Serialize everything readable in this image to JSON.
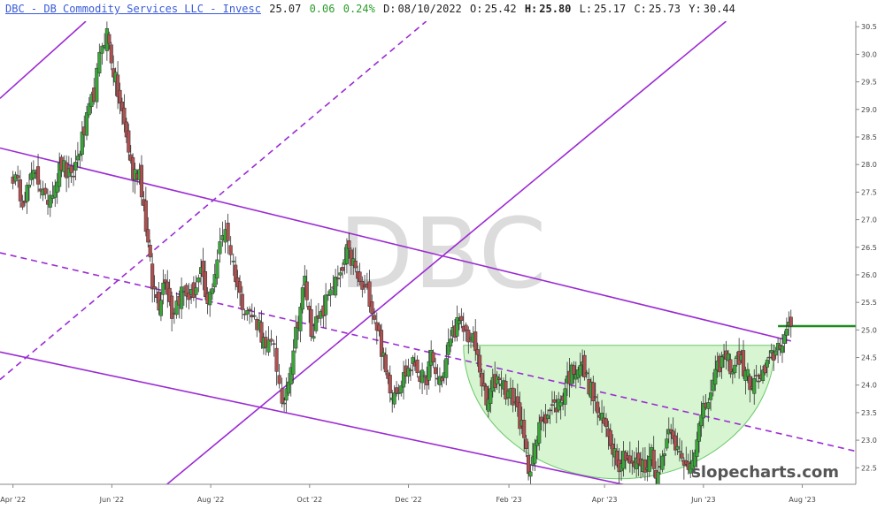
{
  "header": {
    "title": "DBC - DB Commodity Services LLC - Invesc",
    "last": "25.07",
    "change": "0.06",
    "change_pct": "0.24%",
    "date_label": "D:",
    "date": "08/10/2022",
    "open_label": "O:",
    "open": "25.42",
    "high_label": "H:",
    "high": "25.80",
    "low_label": "L:",
    "low": "25.17",
    "close_label": "C:",
    "close": "25.73",
    "year_label": "Y:",
    "year": "30.44"
  },
  "watermark": "DBC",
  "brand": "slopecharts.com",
  "colors": {
    "up": "#3aa63a",
    "down": "#b05050",
    "channel": "#9b2bd3",
    "last_price_line": "#1e8a1e",
    "cup_fill": "#d6f5d0",
    "cup_stroke": "#6cc96c",
    "watermark": "#dcdcdc"
  },
  "chart_data": {
    "type": "candlestick",
    "x_labels": [
      "Apr '22",
      "Jun '22",
      "Aug '22",
      "Oct '22",
      "Dec '22",
      "Feb '23",
      "Apr '23",
      "Jun '23",
      "Aug '23"
    ],
    "x_label_days": [
      0,
      61,
      122,
      183,
      244,
      306,
      365,
      426,
      487
    ],
    "y_ticks": [
      "22.5",
      "23.0",
      "23.5",
      "24.0",
      "24.5",
      "25.0",
      "25.5",
      "26.0",
      "26.5",
      "27.0",
      "27.5",
      "28.0",
      "28.5",
      "29.0",
      "29.5",
      "30.0",
      "30.5"
    ],
    "ylim": [
      22.2,
      30.6
    ],
    "xlim": [
      -8,
      520
    ],
    "price_anchors": [
      [
        0,
        27.8
      ],
      [
        6,
        27.4
      ],
      [
        10,
        27.6
      ],
      [
        14,
        27.9
      ],
      [
        20,
        27.3
      ],
      [
        26,
        27.7
      ],
      [
        30,
        28.0
      ],
      [
        36,
        27.7
      ],
      [
        44,
        28.6
      ],
      [
        50,
        29.3
      ],
      [
        55,
        30.2
      ],
      [
        58,
        30.4
      ],
      [
        62,
        29.7
      ],
      [
        66,
        29.1
      ],
      [
        70,
        28.5
      ],
      [
        74,
        27.8
      ],
      [
        78,
        27.9
      ],
      [
        82,
        26.9
      ],
      [
        86,
        25.8
      ],
      [
        90,
        25.5
      ],
      [
        94,
        26.0
      ],
      [
        98,
        25.3
      ],
      [
        104,
        25.7
      ],
      [
        110,
        25.6
      ],
      [
        116,
        26.0
      ],
      [
        120,
        25.4
      ],
      [
        126,
        26.3
      ],
      [
        131,
        26.9
      ],
      [
        136,
        26.2
      ],
      [
        140,
        25.6
      ],
      [
        146,
        25.3
      ],
      [
        152,
        25.1
      ],
      [
        156,
        24.6
      ],
      [
        161,
        24.8
      ],
      [
        166,
        23.5
      ],
      [
        170,
        24.2
      ],
      [
        176,
        25.2
      ],
      [
        180,
        25.9
      ],
      [
        184,
        25.0
      ],
      [
        190,
        25.2
      ],
      [
        196,
        25.8
      ],
      [
        202,
        25.9
      ],
      [
        206,
        26.4
      ],
      [
        210,
        26.2
      ],
      [
        214,
        25.8
      ],
      [
        220,
        25.6
      ],
      [
        226,
        24.9
      ],
      [
        230,
        24.2
      ],
      [
        234,
        23.9
      ],
      [
        238,
        24.0
      ],
      [
        244,
        24.3
      ],
      [
        248,
        24.4
      ],
      [
        254,
        24.0
      ],
      [
        258,
        24.5
      ],
      [
        262,
        24.1
      ],
      [
        266,
        24.2
      ],
      [
        270,
        24.9
      ],
      [
        274,
        25.1
      ],
      [
        278,
        25.0
      ],
      [
        284,
        24.8
      ],
      [
        288,
        24.3
      ],
      [
        292,
        23.6
      ],
      [
        296,
        24.0
      ],
      [
        300,
        24.2
      ],
      [
        304,
        23.9
      ],
      [
        310,
        23.7
      ],
      [
        314,
        23.2
      ],
      [
        318,
        22.5
      ],
      [
        322,
        22.8
      ],
      [
        326,
        23.4
      ],
      [
        330,
        23.5
      ],
      [
        334,
        23.6
      ],
      [
        338,
        23.7
      ],
      [
        342,
        24.1
      ],
      [
        346,
        24.3
      ],
      [
        350,
        24.4
      ],
      [
        354,
        24.1
      ],
      [
        358,
        23.8
      ],
      [
        362,
        23.4
      ],
      [
        366,
        23.2
      ],
      [
        370,
        22.9
      ],
      [
        374,
        22.6
      ],
      [
        378,
        22.8
      ],
      [
        382,
        22.5
      ],
      [
        386,
        22.6
      ],
      [
        390,
        22.5
      ],
      [
        394,
        22.8
      ],
      [
        398,
        22.3
      ],
      [
        402,
        22.9
      ],
      [
        406,
        23.3
      ],
      [
        410,
        22.8
      ],
      [
        414,
        22.5
      ],
      [
        418,
        22.6
      ],
      [
        422,
        23.1
      ],
      [
        426,
        23.5
      ],
      [
        432,
        24.0
      ],
      [
        436,
        24.4
      ],
      [
        440,
        24.5
      ],
      [
        444,
        24.3
      ],
      [
        448,
        24.5
      ],
      [
        452,
        24.2
      ],
      [
        456,
        24.0
      ],
      [
        460,
        24.1
      ],
      [
        464,
        24.2
      ],
      [
        468,
        24.5
      ],
      [
        472,
        24.7
      ],
      [
        476,
        24.9
      ],
      [
        480,
        25.07
      ]
    ],
    "channel_lines": [
      {
        "style": "solid",
        "points": [
          [
            -8,
            28.3
          ],
          [
            480,
            24.8
          ]
        ]
      },
      {
        "style": "dashed",
        "points": [
          [
            -8,
            26.4
          ],
          [
            520,
            22.8
          ]
        ]
      },
      {
        "style": "solid",
        "points": [
          [
            -8,
            24.6
          ],
          [
            440,
            21.8
          ]
        ]
      },
      {
        "style": "solid",
        "points": [
          [
            -8,
            29.2
          ],
          [
            45,
            30.6
          ]
        ]
      },
      {
        "style": "dashed",
        "points": [
          [
            -8,
            24.1
          ],
          [
            255,
            30.6
          ]
        ]
      },
      {
        "style": "solid",
        "points": [
          [
            95,
            22.2
          ],
          [
            440,
            30.6
          ]
        ]
      }
    ],
    "last_price": 25.07,
    "cup": {
      "x_start": 278,
      "x_end": 470,
      "rim": 24.72,
      "bottom": 22.3
    }
  }
}
